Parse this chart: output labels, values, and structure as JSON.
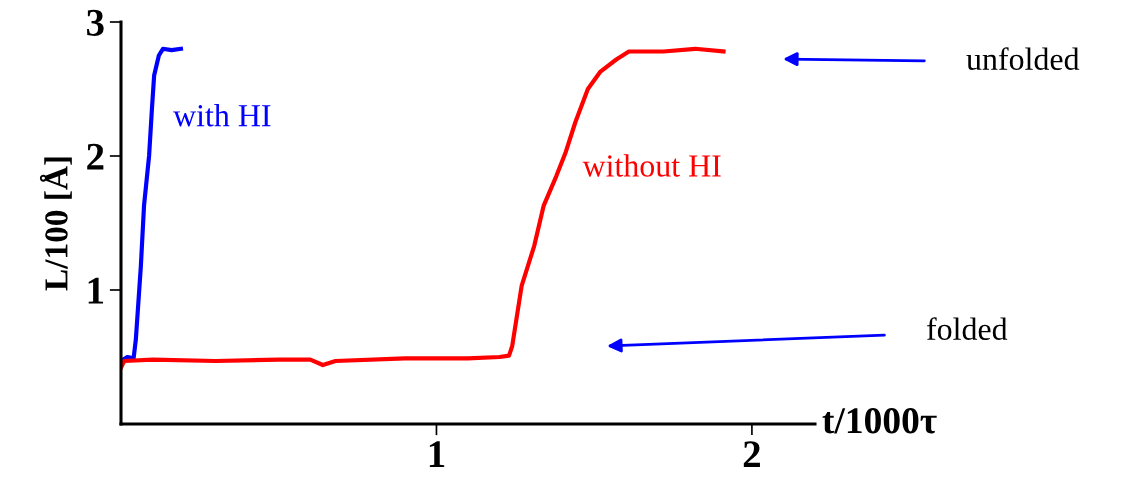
{
  "chart_data": {
    "type": "line",
    "xlabel": "t/1000τ",
    "ylabel": "L/100 [Å]",
    "xlim": [
      0,
      2.2
    ],
    "ylim": [
      0,
      3
    ],
    "xticks": [
      1,
      2
    ],
    "yticks": [
      1,
      2,
      3
    ],
    "grid": false,
    "legend": false,
    "marker": "none",
    "line_style": "solid",
    "series": [
      {
        "name": "with HI",
        "color": "#0000ff",
        "x": [
          0,
          0.02,
          0.04,
          0.047,
          0.063,
          0.073,
          0.089,
          0.098,
          0.105,
          0.12,
          0.133,
          0.16,
          0.19
        ],
        "values": [
          0.47,
          0.5,
          0.49,
          0.63,
          1.18,
          1.63,
          2.0,
          2.35,
          2.6,
          2.75,
          2.8,
          2.79,
          2.8
        ]
      },
      {
        "name": "without HI",
        "color": "#ff0000",
        "x": [
          0,
          0.01,
          0.1,
          0.3,
          0.5,
          0.6,
          0.64,
          0.68,
          0.9,
          1.1,
          1.2,
          1.23,
          1.24,
          1.27,
          1.31,
          1.34,
          1.38,
          1.41,
          1.44,
          1.48,
          1.52,
          1.57,
          1.61,
          1.72,
          1.82,
          1.91
        ],
        "values": [
          0.42,
          0.47,
          0.48,
          0.47,
          0.48,
          0.48,
          0.44,
          0.47,
          0.49,
          0.49,
          0.5,
          0.51,
          0.58,
          1.03,
          1.33,
          1.63,
          1.85,
          2.03,
          2.25,
          2.5,
          2.63,
          2.72,
          2.78,
          2.78,
          2.8,
          2.78
        ]
      }
    ],
    "annotations": [
      "unfolded",
      "folded"
    ]
  }
}
